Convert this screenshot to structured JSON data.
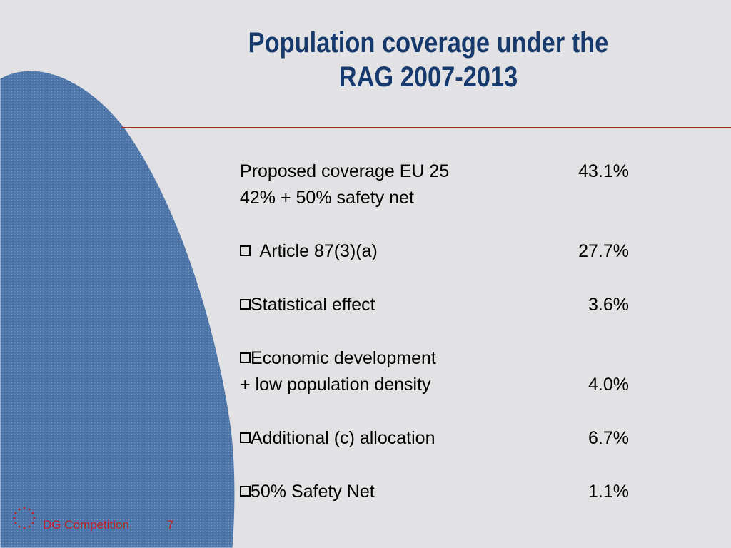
{
  "slide": {
    "title_line1": "Population coverage under the",
    "title_line2": "RAG 2007-2013",
    "items": [
      {
        "label": "Proposed coverage EU 25",
        "value": "43.1%"
      },
      {
        "label": "42% + 50% safety net",
        "value": ""
      },
      {
        "label": "Article 87(3)(a)",
        "value": "27.7%",
        "bullet": true
      },
      {
        "label": "Statistical effect",
        "value": "3.6%",
        "bullet": true
      },
      {
        "label": "Economic development",
        "value": "",
        "bullet": true
      },
      {
        "label": "+ low population density",
        "value": "4.0%"
      },
      {
        "label": "Additional (c) allocation",
        "value": "6.7%",
        "bullet": true
      },
      {
        "label": "50% Safety Net",
        "value": "1.1%",
        "bullet": true
      }
    ],
    "footer": {
      "label": "DG Competition",
      "page": "7"
    }
  },
  "colors": {
    "background": "#e2e2e4",
    "title": "#173a6e",
    "rule": "#a0302a",
    "blob": "#4f77aa",
    "footer_text": "#c0201c",
    "stars": "#c0201c"
  },
  "icons": {
    "bullet": "hollow-square-bullet-icon",
    "logo": "eu-stars-circle-icon"
  }
}
